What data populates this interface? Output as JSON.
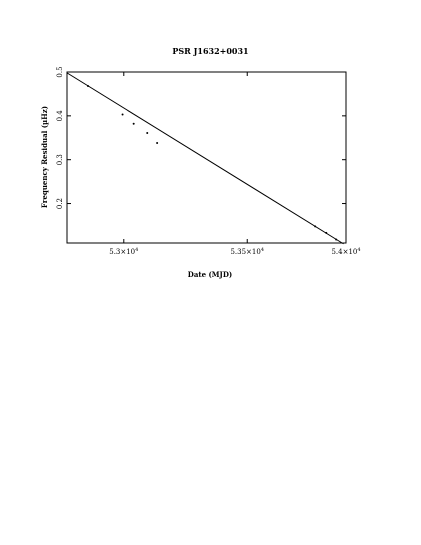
{
  "chart_data": {
    "type": "scatter",
    "title": "PSR J1632+0031",
    "xlabel": "Date (MJD)",
    "ylabel": "Frequency Residual (µHz)",
    "xlim": [
      52770,
      53900
    ],
    "ylim": [
      0.11,
      0.5
    ],
    "x_ticks": [
      {
        "value": 53000,
        "mantissa": "5.3×10",
        "exp": "4"
      },
      {
        "value": 53500,
        "mantissa": "5.35×10",
        "exp": "4"
      },
      {
        "value": 54000,
        "mantissa": "5.4×10",
        "exp": "4"
      }
    ],
    "y_ticks": [
      {
        "value": 0.2,
        "label": "0.2"
      },
      {
        "value": 0.3,
        "label": "0.3"
      },
      {
        "value": 0.4,
        "label": "0.4"
      },
      {
        "value": 0.5,
        "label": "0.5"
      }
    ],
    "points": [
      {
        "x": 52855,
        "y": 0.468
      },
      {
        "x": 52995,
        "y": 0.403
      },
      {
        "x": 53040,
        "y": 0.382
      },
      {
        "x": 53095,
        "y": 0.361
      },
      {
        "x": 53135,
        "y": 0.338
      },
      {
        "x": 53775,
        "y": 0.148
      },
      {
        "x": 53820,
        "y": 0.133
      },
      {
        "x": 53860,
        "y": 0.118
      }
    ],
    "fit_line": {
      "x": [
        52770,
        53890
      ],
      "y": [
        0.498,
        0.108
      ]
    },
    "grid": false,
    "legend": "none"
  }
}
